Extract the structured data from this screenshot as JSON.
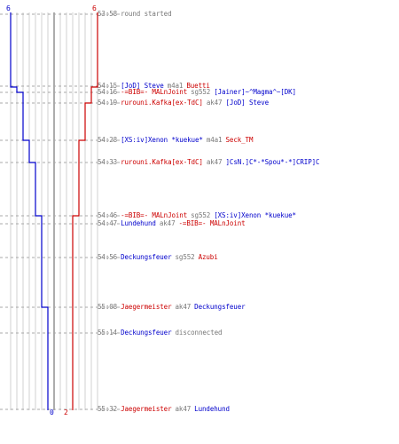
{
  "colors": {
    "blue": "#0000cc",
    "red": "#cc0000",
    "gray": "#777777",
    "grid": "#d0d0d0",
    "axis": "#909090"
  },
  "scores": {
    "blue_start": "6",
    "red_start": "6",
    "blue_end": "0",
    "red_end": "2"
  },
  "events": [
    {
      "time": "53:58",
      "parts": [
        {
          "text": "round started",
          "c": "gray"
        }
      ]
    },
    {
      "time": "54:15",
      "parts": [
        {
          "text": "[JoD] Steve",
          "c": "blue"
        },
        {
          "text": "m4a1",
          "c": "gray"
        },
        {
          "text": "Buetti",
          "c": "red"
        }
      ]
    },
    {
      "time": "54:16",
      "parts": [
        {
          "text": "-=BIB=- MALnJoint",
          "c": "red"
        },
        {
          "text": "sg552",
          "c": "gray"
        },
        {
          "text": "[Jainer]~^Magma^~[DK]",
          "c": "blue"
        }
      ]
    },
    {
      "time": "54:19",
      "parts": [
        {
          "text": "rurouni.Kafka[ex-TdC]",
          "c": "red"
        },
        {
          "text": "ak47",
          "c": "gray"
        },
        {
          "text": "[JoD] Steve",
          "c": "blue"
        }
      ]
    },
    {
      "time": "54:28",
      "parts": [
        {
          "text": "[XS:iv]Xenon *kuekue*",
          "c": "blue"
        },
        {
          "text": "m4a1",
          "c": "gray"
        },
        {
          "text": "Seck_TM",
          "c": "red"
        }
      ]
    },
    {
      "time": "54:33",
      "parts": [
        {
          "text": "rurouni.Kafka[ex-TdC]",
          "c": "red"
        },
        {
          "text": "ak47",
          "c": "gray"
        },
        {
          "text": "]CsN.]C*-*Spou*-*]CRIP]C",
          "c": "blue"
        }
      ]
    },
    {
      "time": "54:46",
      "parts": [
        {
          "text": "-=BIB=- MALnJoint",
          "c": "red"
        },
        {
          "text": "sg552",
          "c": "gray"
        },
        {
          "text": "[XS:iv]Xenon *kuekue*",
          "c": "blue"
        }
      ]
    },
    {
      "time": "54:47",
      "parts": [
        {
          "text": "Lundehund",
          "c": "blue"
        },
        {
          "text": "ak47",
          "c": "gray"
        },
        {
          "text": "-=BIB=- MALnJoint",
          "c": "red"
        }
      ]
    },
    {
      "time": "54:56",
      "parts": [
        {
          "text": "Deckungsfeuer",
          "c": "blue"
        },
        {
          "text": "sg552",
          "c": "gray"
        },
        {
          "text": "Azubi",
          "c": "red"
        }
      ]
    },
    {
      "time": "55:08",
      "parts": [
        {
          "text": "Jaegermeister",
          "c": "red"
        },
        {
          "text": "ak47",
          "c": "gray"
        },
        {
          "text": "Deckungsfeuer",
          "c": "blue"
        }
      ]
    },
    {
      "time": "55:14",
      "parts": [
        {
          "text": "Deckungsfeuer",
          "c": "blue"
        },
        {
          "text": "disconnected",
          "c": "gray"
        }
      ]
    },
    {
      "time": "55:32",
      "parts": [
        {
          "text": "Jaegermeister",
          "c": "red"
        },
        {
          "text": "ak47",
          "c": "gray"
        },
        {
          "text": "Lundehund",
          "c": "blue"
        }
      ]
    }
  ],
  "blue_alive": [
    6,
    5,
    4,
    4,
    3,
    2,
    1,
    0,
    0
  ],
  "red_alive": [
    6,
    5,
    5,
    4,
    3,
    3,
    2,
    2,
    2
  ]
}
